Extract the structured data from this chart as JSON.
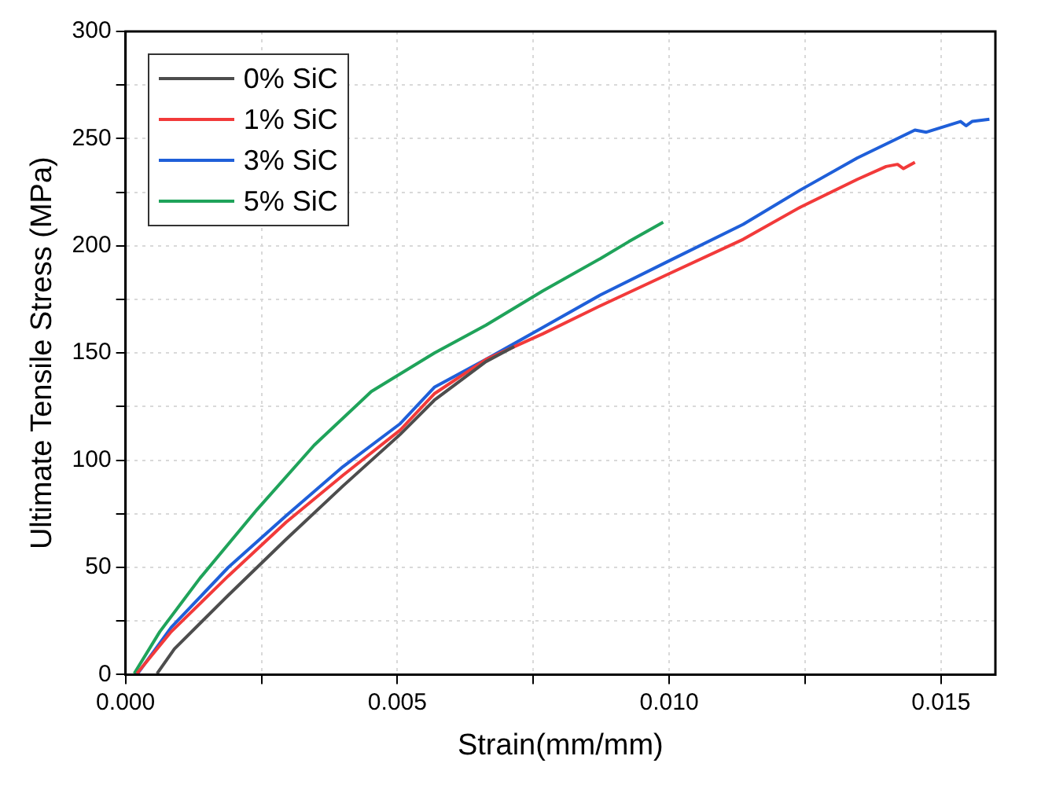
{
  "chart_data": {
    "type": "line",
    "xlabel": "Strain(mm/mm)",
    "ylabel": "Ultimate Tensile Stress (MPa)",
    "xlim": [
      0,
      0.016
    ],
    "ylim": [
      0,
      300
    ],
    "xticks": [
      {
        "value": 0,
        "label": "0.000"
      },
      {
        "value": 0.0025,
        "label": null
      },
      {
        "value": 0.005,
        "label": "0.005"
      },
      {
        "value": 0.0075,
        "label": null
      },
      {
        "value": 0.01,
        "label": "0.010"
      },
      {
        "value": 0.0125,
        "label": null
      },
      {
        "value": 0.015,
        "label": "0.015"
      }
    ],
    "yticks": [
      0,
      {
        "value": 25,
        "label": null
      },
      50,
      {
        "value": 75,
        "label": null
      },
      100,
      {
        "value": 125,
        "label": null
      },
      150,
      {
        "value": 175,
        "label": null
      },
      200,
      {
        "value": 225,
        "label": null
      },
      250,
      {
        "value": 275,
        "label": null
      },
      300
    ],
    "grid": true,
    "legend": "top left",
    "marker": "none",
    "line_style": "solid",
    "series": [
      {
        "name": "0% SiC",
        "color": "#4d4d4d",
        "x": [
          0.00058,
          0.0009,
          0.00189,
          0.00295,
          0.004,
          0.00505,
          0.00568,
          0.00663,
          0.00715
        ],
        "values": [
          0.5,
          12,
          37,
          63,
          88,
          112,
          128,
          146,
          153
        ]
      },
      {
        "name": "1% SiC",
        "color": "#f23a3a",
        "x": [
          0.00021,
          0.00084,
          0.00189,
          0.00295,
          0.004,
          0.00505,
          0.00568,
          0.00663,
          0.00768,
          0.00873,
          0.01,
          0.01136,
          0.01241,
          0.01346,
          0.01399,
          0.0142,
          0.01431,
          0.01452
        ],
        "values": [
          0.5,
          20,
          46,
          71,
          93,
          114,
          131,
          147,
          159,
          172,
          187,
          203,
          218,
          231,
          237,
          238,
          236,
          239
        ]
      },
      {
        "name": "3% SiC",
        "color": "#1f5fd9",
        "x": [
          0.00021,
          0.00084,
          0.00189,
          0.00295,
          0.004,
          0.00505,
          0.00568,
          0.00663,
          0.00768,
          0.00873,
          0.01,
          0.01136,
          0.01241,
          0.01346,
          0.01452,
          0.01473,
          0.01536,
          0.01546,
          0.01557,
          0.01589
        ],
        "values": [
          0,
          22,
          50,
          74,
          97,
          117,
          134,
          147,
          162,
          177,
          193,
          210,
          226,
          241,
          254,
          253,
          258,
          256,
          258,
          259
        ]
      },
      {
        "name": "5% SiC",
        "color": "#1fa35a",
        "x": [
          0.00016,
          0.00063,
          0.00137,
          0.00242,
          0.00347,
          0.00452,
          0.00568,
          0.00663,
          0.00768,
          0.00873,
          0.00926,
          0.00989
        ],
        "values": [
          0.5,
          20,
          45,
          77,
          107,
          132,
          150,
          163,
          179,
          194,
          202,
          211
        ]
      }
    ]
  }
}
